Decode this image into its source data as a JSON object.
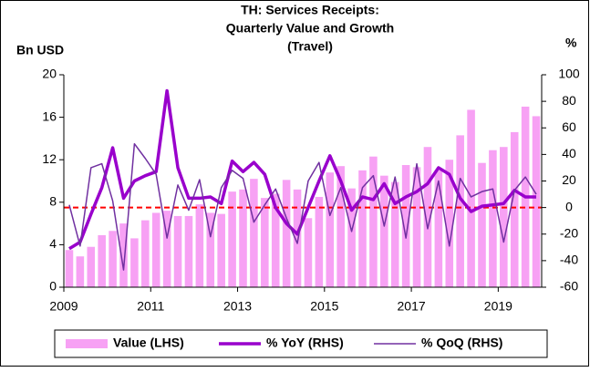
{
  "chart_data": {
    "type": "combo",
    "title": [
      "TH: Services Receipts:",
      "Quarterly Value and Growth",
      "(Travel)"
    ],
    "y_axis_label": "Bn USD",
    "y2_axis_label": "%",
    "categories": [
      "2009",
      null,
      null,
      null,
      null,
      null,
      null,
      null,
      "2011",
      null,
      null,
      null,
      null,
      null,
      null,
      null,
      "2013",
      null,
      null,
      null,
      null,
      null,
      null,
      null,
      "2015",
      null,
      null,
      null,
      null,
      null,
      null,
      null,
      "2017",
      null,
      null,
      null,
      null,
      null,
      null,
      null,
      "2019",
      null,
      null,
      null
    ],
    "ylim": [
      0,
      20
    ],
    "yticks": [
      0,
      4,
      8,
      12,
      16,
      20
    ],
    "y2lim": [
      -60,
      100
    ],
    "y2ticks": [
      -60,
      -40,
      -20,
      0,
      20,
      40,
      60,
      80,
      100
    ],
    "reference_line": {
      "axis": "y2",
      "value": 0,
      "color": "#ff0000",
      "dashed": true
    },
    "legend": "bottom",
    "series": [
      {
        "name": "Value (LHS)",
        "type": "bar",
        "color": "#f7a1f4",
        "axis": "y",
        "values": [
          3.5,
          2.9,
          3.8,
          4.9,
          5.3,
          6.0,
          4.6,
          6.3,
          7.0,
          7.2,
          6.7,
          6.7,
          7.8,
          7.0,
          6.9,
          9.0,
          9.2,
          10.2,
          8.4,
          8.8,
          10.1,
          9.2,
          6.5,
          8.5,
          10.8,
          11.4,
          9.3,
          11.0,
          12.3,
          10.5,
          9.9,
          11.5,
          11.3,
          13.2,
          11.0,
          12.0,
          14.3,
          16.7,
          11.7,
          12.9,
          13.2,
          14.6,
          17.0,
          16.1
        ]
      },
      {
        "name": "% YoY (RHS)",
        "type": "line",
        "color": "#9900cc",
        "width": 3.5,
        "axis": "y2",
        "values": [
          -31,
          -26,
          -5,
          15,
          45,
          7,
          20,
          24,
          27,
          88,
          30,
          7,
          7,
          8,
          3,
          35,
          27,
          34,
          25,
          0,
          -12,
          -20,
          0,
          20,
          39,
          20,
          -2,
          8,
          6,
          18,
          3,
          8,
          12,
          18,
          30,
          25,
          7,
          -3,
          1,
          2,
          3,
          13,
          8,
          8
        ]
      },
      {
        "name": "% QoQ (RHS)",
        "type": "line",
        "color": "#7030a0",
        "width": 1.5,
        "axis": "y2",
        "values": [
          2,
          -29,
          30,
          33,
          5,
          -47,
          48,
          37,
          25,
          -23,
          17,
          -2,
          21,
          -22,
          15,
          28,
          22,
          -11,
          2,
          14,
          -8,
          -27,
          20,
          34,
          -6,
          15,
          -18,
          15,
          24,
          -14,
          23,
          -23,
          33,
          -16,
          20,
          -29,
          22,
          8,
          12,
          14,
          -26,
          13,
          23,
          10
        ]
      }
    ]
  }
}
